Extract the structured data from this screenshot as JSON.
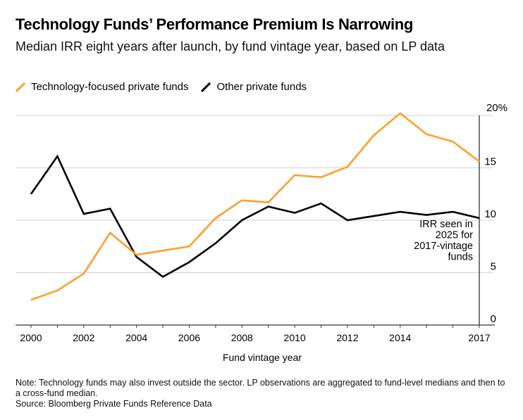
{
  "title": "Technology Funds’ Performance Premium Is Narrowing",
  "subtitle": "Median IRR eight years after launch, by fund vintage year, based on LP data",
  "note": "Note: Technology funds may also invest outside the sector. LP observations are aggregated to fund-level medians and then to a cross-fund median.",
  "source": "Source: Bloomberg Private Funds Reference Data",
  "chart_data": {
    "type": "line",
    "title": "Technology Funds’ Performance Premium Is Narrowing",
    "xlabel": "Fund vintage year",
    "ylabel": "",
    "x": [
      2000,
      2001,
      2002,
      2003,
      2004,
      2005,
      2006,
      2007,
      2008,
      2009,
      2010,
      2011,
      2012,
      2013,
      2014,
      2015,
      2016,
      2017
    ],
    "xlim": [
      2000,
      2017
    ],
    "ylim": [
      0,
      20
    ],
    "x_tick_labels": [
      "2000",
      "2002",
      "2004",
      "2006",
      "2008",
      "2010",
      "2012",
      "2014",
      "2017"
    ],
    "x_ticks": [
      2000,
      2002,
      2004,
      2006,
      2008,
      2010,
      2012,
      2014,
      2017
    ],
    "y_tick_labels": [
      "20%",
      "15",
      "10",
      "5",
      "0"
    ],
    "y_ticks": [
      20,
      15,
      10,
      5,
      0
    ],
    "grid": true,
    "legend_placement": "top-left",
    "series": [
      {
        "name": "Technology-focused private funds",
        "color": "#ff9e2c",
        "values": [
          2.4,
          3.3,
          4.9,
          8.8,
          6.7,
          7.1,
          7.5,
          10.2,
          11.9,
          11.7,
          14.3,
          14.1,
          15.1,
          18.1,
          20.2,
          18.2,
          17.5,
          15.6
        ]
      },
      {
        "name": "Other private funds",
        "color": "#000000",
        "values": [
          12.5,
          16.1,
          10.6,
          11.1,
          6.5,
          4.6,
          6.0,
          7.8,
          10.0,
          11.3,
          10.7,
          11.6,
          10.0,
          10.4,
          10.8,
          10.5,
          10.8,
          10.2
        ]
      }
    ],
    "annotations": [
      "IRR seen in",
      "2025 for",
      "2017-vintage",
      "funds"
    ]
  }
}
